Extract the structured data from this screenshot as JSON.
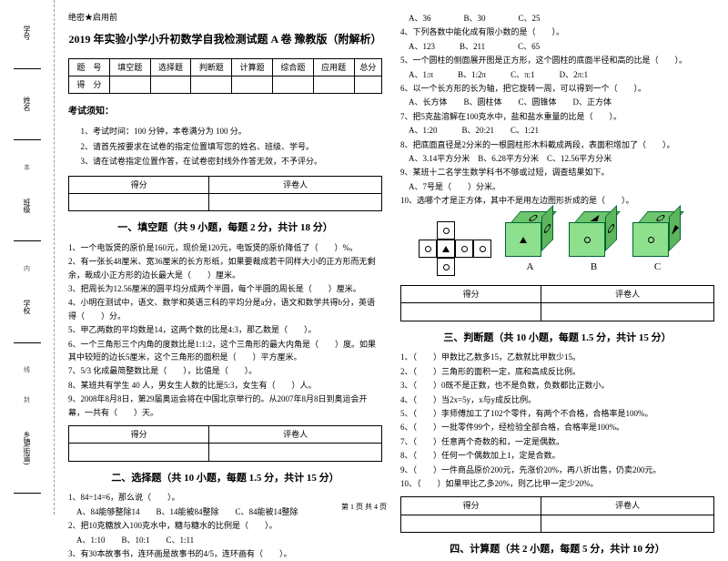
{
  "side": {
    "labels": [
      "学号",
      "姓名",
      "班级",
      "学校",
      "乡镇(街道)"
    ],
    "notes": [
      "本",
      "内",
      "线",
      "封"
    ]
  },
  "secrecy": "绝密★启用前",
  "title": "2019 年实验小学小升初数学自我检测试题 A 卷 豫教版（附解析）",
  "head_row1": [
    "题　号",
    "填空题",
    "选择题",
    "判断题",
    "计算题",
    "综合题",
    "应用题",
    "总分"
  ],
  "head_row2": [
    "得　分",
    "",
    "",
    "",
    "",
    "",
    "",
    ""
  ],
  "notice_title": "考试须知：",
  "notices": [
    "1、考试时间：100 分钟，本卷满分为 100 分。",
    "2、请首先按要求在试卷的指定位置填写您的姓名、班级、学号。",
    "3、请在试卷指定位置作答，在试卷密封线外作答无效，不予评分。"
  ],
  "score_cells": [
    "得分",
    "评卷人"
  ],
  "sec1_title": "一、填空题（共 9 小题，每题 2 分，共计 18 分）",
  "q1": [
    "1、一个电饭煲的原价是160元，现价是120元，电饭煲的原价降低了（　　）%。",
    "2、有一张长48厘米、宽36厘米的长方形纸，如果要裁成若干同样大小的正方形而无剩余，裁成小正方形的边长最大是（　　）厘米。",
    "3、把周长为12.56厘米的圆平均分成两个半圆，每个半圆的周长是（　　）厘米。",
    "4、小明在测试中，语文、数学和英语三科的平均分是a分，语文和数学共得b分，英语得（　　）分。",
    "5、甲乙两数的平均数是14，这两个数的比是4:3，那乙数是（　　）。",
    "6、一个三角形三个内角的度数比是1:1:2，这个三角形的最大内角是（　　）度。如果其中较短的边长5厘米，这个三角形的面积是（　　）平方厘米。",
    "7、5/3 化成最简整数比是（　　），比值是（　　）。",
    "8、某班共有学生 40 人，男女生人数的比是5:3，女生有（　　）人。",
    "9、2008年8月8日，第29届奥运会将在中国北京举行的。从2007年8月8日到奥运会开幕，一共有（　　）天。"
  ],
  "sec2_title": "二、选择题（共 10 小题，每题 1.5 分，共计 15 分）",
  "q2": [
    "1、84÷14=6，那么说（　　）。",
    "　A、84能够整除14　　B、14能被84整除　　C、84能被14整除",
    "2、把10克糖放入100克水中，糖与糖水的比例是（　　）。",
    "　A、1:10　　B、10:1　　C、1:11",
    "3、有30本故事书，连环画是故事书的4/5，连环画有（　　）。"
  ],
  "q2r": [
    "　A、36　　　　B、30　　　　C、25",
    "4、下列各数中能化成有限小数的是（　　）。",
    "　A、123　　　B、211　　　　C、65",
    "5、一个圆柱的侧面展开图是正方形，这个圆柱的底面半径和高的比是（　　）。",
    "　A、1:π　　　B、1:2π　　　C、π:1　　　D、2π:1",
    "6、以一个长方形的长为轴，把它旋转一周，可以得到一个（　　）。",
    "　A、长方体　　B、圆柱体　　C、圆锥体　　D、正方体",
    "7、把5克盐溶解在100克水中，盐和盐水重量的比是（　　）。",
    "　A、1:20　　　B、20:21　　C、1:21",
    "8、把底面直径是2分米的一根圆柱形木料截成两段，表面积增加了（　　）。",
    "　A、3.14平方分米　B、6.28平方分米　C、12.56平方分米",
    "9、某班十二名学生数学科书不够或过短，调查结果如下。",
    "　A、7号是（　　）分米。",
    "10、选哪个才是正方体，其中不是用左边图形折成的是（　　）。"
  ],
  "cube_labels": [
    "A",
    "B",
    "C"
  ],
  "sec3_title": "三、判断题（共 10 小题，每题 1.5 分，共计 15 分）",
  "q3": [
    "1、（　　）甲数比乙数多15，乙数就比甲数少15。",
    "2、（　　）三角形的面积一定，底和高成反比例。",
    "3、（　　）0既不是正数，也不是负数，负数都比正数小。",
    "4、（　　）当2x=5y，x与y成反比例。",
    "5、（　　）李师傅加工了102个零件，有两个不合格，合格率是100%。",
    "6、（　　）一批零件99个，经检验全部合格，合格率是100%。",
    "7、（　　）任意两个奇数的和，一定是偶数。",
    "8、（　　）任何一个偶数加上1，定是合数。",
    "9、（　　）一件商品原价200元，先涨价20%，再八折出售，仍卖200元。",
    "10、（　　）如果甲比乙多20%，则乙比甲一定少20%。"
  ],
  "sec4_title": "四、计算题（共 2 小题，每题 5 分，共计 10 分）",
  "footer": "第 1 页 共 4 页"
}
